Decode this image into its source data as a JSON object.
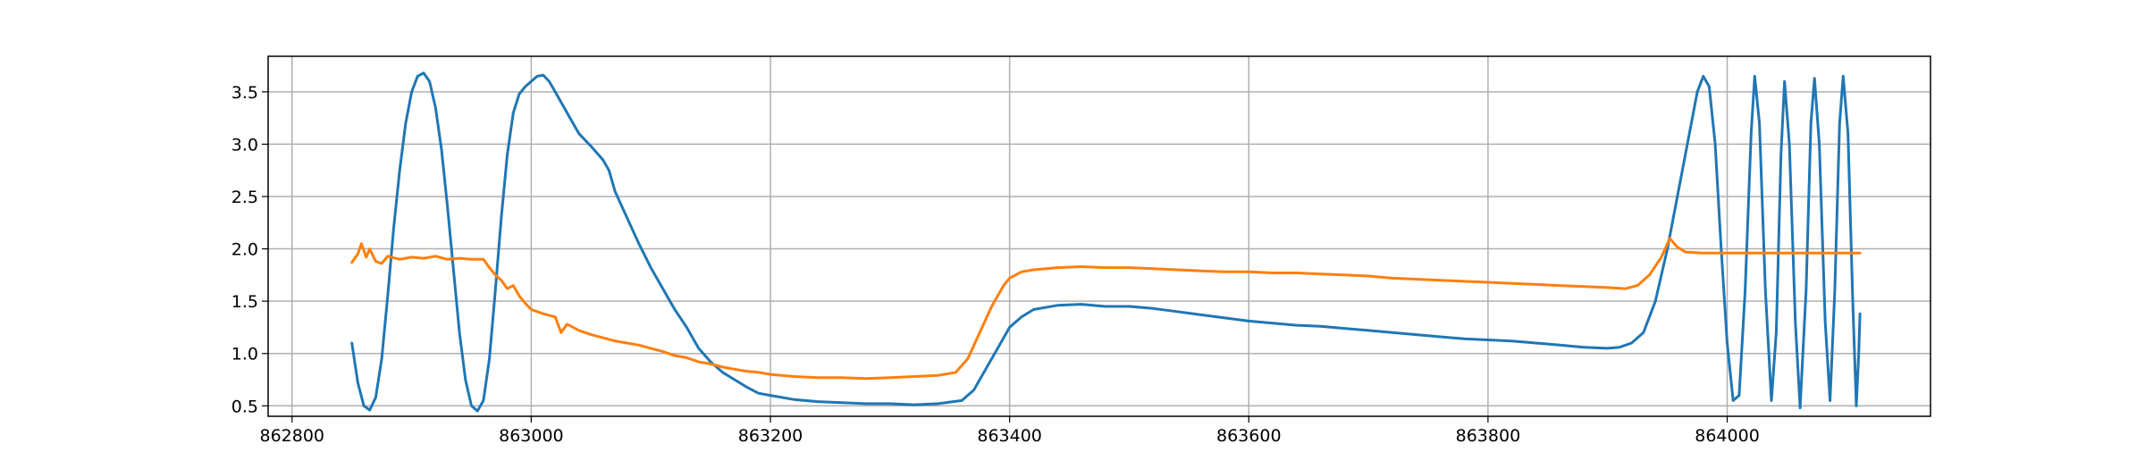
{
  "chart_data": {
    "type": "line",
    "title": "",
    "xlabel": "",
    "ylabel": "",
    "xlim": [
      862780,
      864170
    ],
    "ylim": [
      0.4,
      3.84
    ],
    "grid": true,
    "legend": "none",
    "x_ticks": [
      862800,
      863000,
      863200,
      863400,
      863600,
      863800,
      864000
    ],
    "y_ticks": [
      0.5,
      1.0,
      1.5,
      2.0,
      2.5,
      3.0,
      3.5
    ],
    "series": [
      {
        "color": "#1f77b4",
        "points": [
          [
            862850,
            1.1
          ],
          [
            862855,
            0.72
          ],
          [
            862860,
            0.5
          ],
          [
            862865,
            0.46
          ],
          [
            862870,
            0.58
          ],
          [
            862875,
            0.95
          ],
          [
            862880,
            1.55
          ],
          [
            862885,
            2.2
          ],
          [
            862890,
            2.75
          ],
          [
            862895,
            3.2
          ],
          [
            862900,
            3.5
          ],
          [
            862905,
            3.65
          ],
          [
            862910,
            3.68
          ],
          [
            862915,
            3.6
          ],
          [
            862920,
            3.35
          ],
          [
            862925,
            2.95
          ],
          [
            862930,
            2.4
          ],
          [
            862935,
            1.8
          ],
          [
            862940,
            1.2
          ],
          [
            862945,
            0.75
          ],
          [
            862950,
            0.5
          ],
          [
            862955,
            0.45
          ],
          [
            862960,
            0.55
          ],
          [
            862965,
            0.95
          ],
          [
            862970,
            1.6
          ],
          [
            862975,
            2.3
          ],
          [
            862980,
            2.9
          ],
          [
            862985,
            3.3
          ],
          [
            862990,
            3.48
          ],
          [
            862995,
            3.55
          ],
          [
            863000,
            3.6
          ],
          [
            863005,
            3.65
          ],
          [
            863010,
            3.66
          ],
          [
            863015,
            3.6
          ],
          [
            863020,
            3.5
          ],
          [
            863030,
            3.3
          ],
          [
            863040,
            3.1
          ],
          [
            863050,
            2.98
          ],
          [
            863060,
            2.85
          ],
          [
            863065,
            2.75
          ],
          [
            863070,
            2.55
          ],
          [
            863080,
            2.3
          ],
          [
            863090,
            2.05
          ],
          [
            863100,
            1.82
          ],
          [
            863110,
            1.62
          ],
          [
            863120,
            1.42
          ],
          [
            863130,
            1.25
          ],
          [
            863140,
            1.05
          ],
          [
            863150,
            0.92
          ],
          [
            863160,
            0.82
          ],
          [
            863170,
            0.75
          ],
          [
            863180,
            0.68
          ],
          [
            863190,
            0.62
          ],
          [
            863200,
            0.6
          ],
          [
            863220,
            0.56
          ],
          [
            863240,
            0.54
          ],
          [
            863260,
            0.53
          ],
          [
            863280,
            0.52
          ],
          [
            863300,
            0.52
          ],
          [
            863320,
            0.51
          ],
          [
            863340,
            0.52
          ],
          [
            863360,
            0.55
          ],
          [
            863370,
            0.65
          ],
          [
            863380,
            0.85
          ],
          [
            863390,
            1.05
          ],
          [
            863400,
            1.25
          ],
          [
            863410,
            1.35
          ],
          [
            863420,
            1.42
          ],
          [
            863440,
            1.46
          ],
          [
            863460,
            1.47
          ],
          [
            863480,
            1.45
          ],
          [
            863500,
            1.45
          ],
          [
            863520,
            1.43
          ],
          [
            863540,
            1.4
          ],
          [
            863560,
            1.37
          ],
          [
            863580,
            1.34
          ],
          [
            863600,
            1.31
          ],
          [
            863620,
            1.29
          ],
          [
            863640,
            1.27
          ],
          [
            863660,
            1.26
          ],
          [
            863680,
            1.24
          ],
          [
            863700,
            1.22
          ],
          [
            863720,
            1.2
          ],
          [
            863740,
            1.18
          ],
          [
            863760,
            1.16
          ],
          [
            863780,
            1.14
          ],
          [
            863800,
            1.13
          ],
          [
            863820,
            1.12
          ],
          [
            863840,
            1.1
          ],
          [
            863860,
            1.08
          ],
          [
            863880,
            1.06
          ],
          [
            863900,
            1.05
          ],
          [
            863910,
            1.06
          ],
          [
            863920,
            1.1
          ],
          [
            863930,
            1.2
          ],
          [
            863940,
            1.5
          ],
          [
            863950,
            2.0
          ],
          [
            863960,
            2.6
          ],
          [
            863970,
            3.2
          ],
          [
            863975,
            3.5
          ],
          [
            863980,
            3.65
          ],
          [
            863985,
            3.55
          ],
          [
            863990,
            3.0
          ],
          [
            863995,
            2.0
          ],
          [
            864000,
            1.1
          ],
          [
            864005,
            0.55
          ],
          [
            864010,
            0.6
          ],
          [
            864015,
            1.6
          ],
          [
            864020,
            3.1
          ],
          [
            864023,
            3.65
          ],
          [
            864027,
            3.2
          ],
          [
            864032,
            1.6
          ],
          [
            864037,
            0.55
          ],
          [
            864041,
            1.2
          ],
          [
            864045,
            2.9
          ],
          [
            864048,
            3.6
          ],
          [
            864052,
            3.0
          ],
          [
            864057,
            1.3
          ],
          [
            864061,
            0.48
          ],
          [
            864066,
            1.6
          ],
          [
            864070,
            3.2
          ],
          [
            864073,
            3.63
          ],
          [
            864077,
            3.0
          ],
          [
            864082,
            1.3
          ],
          [
            864086,
            0.55
          ],
          [
            864090,
            1.6
          ],
          [
            864094,
            3.2
          ],
          [
            864097,
            3.65
          ],
          [
            864101,
            3.1
          ],
          [
            864105,
            1.5
          ],
          [
            864108,
            0.5
          ],
          [
            864110,
            1.0
          ],
          [
            864111,
            1.38
          ]
        ]
      },
      {
        "color": "#ff7f0e",
        "points": [
          [
            862850,
            1.87
          ],
          [
            862855,
            1.95
          ],
          [
            862858,
            2.05
          ],
          [
            862862,
            1.92
          ],
          [
            862865,
            2.0
          ],
          [
            862870,
            1.88
          ],
          [
            862875,
            1.86
          ],
          [
            862880,
            1.93
          ],
          [
            862890,
            1.9
          ],
          [
            862900,
            1.92
          ],
          [
            862910,
            1.91
          ],
          [
            862920,
            1.93
          ],
          [
            862930,
            1.9
          ],
          [
            862940,
            1.91
          ],
          [
            862950,
            1.9
          ],
          [
            862960,
            1.9
          ],
          [
            862965,
            1.82
          ],
          [
            862970,
            1.75
          ],
          [
            862975,
            1.7
          ],
          [
            862980,
            1.62
          ],
          [
            862985,
            1.65
          ],
          [
            862990,
            1.55
          ],
          [
            862995,
            1.48
          ],
          [
            863000,
            1.42
          ],
          [
            863010,
            1.38
          ],
          [
            863020,
            1.35
          ],
          [
            863025,
            1.2
          ],
          [
            863030,
            1.28
          ],
          [
            863040,
            1.22
          ],
          [
            863050,
            1.18
          ],
          [
            863060,
            1.15
          ],
          [
            863070,
            1.12
          ],
          [
            863080,
            1.1
          ],
          [
            863090,
            1.08
          ],
          [
            863100,
            1.05
          ],
          [
            863110,
            1.02
          ],
          [
            863120,
            0.98
          ],
          [
            863130,
            0.96
          ],
          [
            863140,
            0.92
          ],
          [
            863150,
            0.9
          ],
          [
            863160,
            0.87
          ],
          [
            863170,
            0.85
          ],
          [
            863180,
            0.83
          ],
          [
            863190,
            0.82
          ],
          [
            863200,
            0.8
          ],
          [
            863220,
            0.78
          ],
          [
            863240,
            0.77
          ],
          [
            863260,
            0.77
          ],
          [
            863280,
            0.76
          ],
          [
            863300,
            0.77
          ],
          [
            863320,
            0.78
          ],
          [
            863340,
            0.79
          ],
          [
            863355,
            0.82
          ],
          [
            863365,
            0.95
          ],
          [
            863375,
            1.2
          ],
          [
            863385,
            1.45
          ],
          [
            863395,
            1.65
          ],
          [
            863400,
            1.72
          ],
          [
            863410,
            1.78
          ],
          [
            863420,
            1.8
          ],
          [
            863440,
            1.82
          ],
          [
            863460,
            1.83
          ],
          [
            863480,
            1.82
          ],
          [
            863500,
            1.82
          ],
          [
            863520,
            1.81
          ],
          [
            863540,
            1.8
          ],
          [
            863560,
            1.79
          ],
          [
            863580,
            1.78
          ],
          [
            863600,
            1.78
          ],
          [
            863620,
            1.77
          ],
          [
            863640,
            1.77
          ],
          [
            863660,
            1.76
          ],
          [
            863680,
            1.75
          ],
          [
            863700,
            1.74
          ],
          [
            863720,
            1.72
          ],
          [
            863740,
            1.71
          ],
          [
            863760,
            1.7
          ],
          [
            863780,
            1.69
          ],
          [
            863800,
            1.68
          ],
          [
            863820,
            1.67
          ],
          [
            863840,
            1.66
          ],
          [
            863860,
            1.65
          ],
          [
            863880,
            1.64
          ],
          [
            863900,
            1.63
          ],
          [
            863915,
            1.62
          ],
          [
            863925,
            1.65
          ],
          [
            863935,
            1.75
          ],
          [
            863945,
            1.92
          ],
          [
            863952,
            2.1
          ],
          [
            863958,
            2.02
          ],
          [
            863965,
            1.97
          ],
          [
            863980,
            1.96
          ],
          [
            864000,
            1.96
          ],
          [
            864020,
            1.96
          ],
          [
            864040,
            1.96
          ],
          [
            864060,
            1.96
          ],
          [
            864080,
            1.96
          ],
          [
            864100,
            1.96
          ],
          [
            864111,
            1.96
          ]
        ]
      }
    ]
  }
}
